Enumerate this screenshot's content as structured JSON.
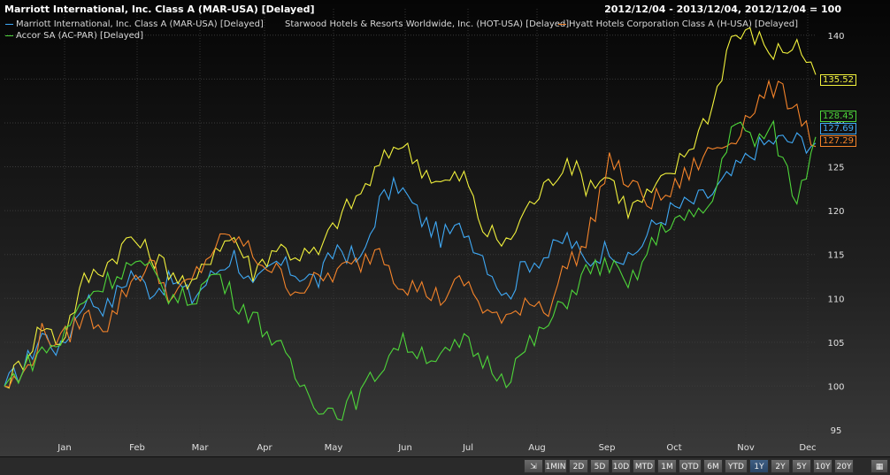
{
  "header": {
    "title": "Marriott International, Inc. Class A (MAR-USA) [Delayed]",
    "range": "2012/12/04 - 2013/12/04, 2012/12/04 = 100"
  },
  "chart_data": {
    "type": "line",
    "ylim": [
      94,
      143
    ],
    "yticks": [
      95,
      100,
      105,
      110,
      115,
      120,
      125,
      130,
      135,
      140
    ],
    "x_axis_labels": [
      "Jan",
      "Feb",
      "Mar",
      "Apr",
      "May",
      "Jun",
      "Jul",
      "Aug",
      "Sep",
      "Oct",
      "Nov",
      "Dec"
    ],
    "grid": true,
    "legend_position": "top-left",
    "series": [
      {
        "name": "Marriott International, Inc. Class A (MAR-USA) [Delayed]",
        "color": "#3fa9f5",
        "last_label": "127.69",
        "anchors": [
          [
            0,
            100
          ],
          [
            4,
            102
          ],
          [
            8,
            106
          ],
          [
            12,
            104
          ],
          [
            17,
            110
          ],
          [
            22,
            109
          ],
          [
            27,
            113
          ],
          [
            31,
            111
          ],
          [
            36,
            112
          ],
          [
            40,
            110
          ],
          [
            45,
            113
          ],
          [
            49,
            115
          ],
          [
            53,
            111
          ],
          [
            58,
            114
          ],
          [
            62,
            113
          ],
          [
            67,
            112
          ],
          [
            71,
            116
          ],
          [
            76,
            114
          ],
          [
            80,
            121
          ],
          [
            84,
            123
          ],
          [
            89,
            119
          ],
          [
            93,
            117
          ],
          [
            98,
            118
          ],
          [
            102,
            115
          ],
          [
            107,
            110
          ],
          [
            111,
            114
          ],
          [
            116,
            115
          ],
          [
            120,
            117
          ],
          [
            124,
            114
          ],
          [
            129,
            116
          ],
          [
            133,
            114
          ],
          [
            138,
            118
          ],
          [
            142,
            120
          ],
          [
            147,
            121
          ],
          [
            151,
            122
          ],
          [
            155,
            124
          ],
          [
            160,
            127
          ],
          [
            164,
            128
          ],
          [
            169,
            128
          ],
          [
            173,
            127.7
          ]
        ]
      },
      {
        "name": "Starwood Hotels & Resorts Worldwide, Inc. (HOT-USA) [Delayed]",
        "color": "#f2f23c",
        "last_label": "135.52",
        "anchors": [
          [
            0,
            100
          ],
          [
            4,
            103
          ],
          [
            8,
            107
          ],
          [
            12,
            105
          ],
          [
            17,
            112
          ],
          [
            22,
            114
          ],
          [
            27,
            117
          ],
          [
            31,
            115
          ],
          [
            36,
            113
          ],
          [
            40,
            111
          ],
          [
            45,
            116
          ],
          [
            49,
            117
          ],
          [
            53,
            113
          ],
          [
            58,
            116
          ],
          [
            62,
            115
          ],
          [
            67,
            115
          ],
          [
            71,
            119
          ],
          [
            76,
            122
          ],
          [
            80,
            125
          ],
          [
            84,
            128
          ],
          [
            89,
            125
          ],
          [
            93,
            123
          ],
          [
            98,
            124
          ],
          [
            102,
            118
          ],
          [
            107,
            116
          ],
          [
            111,
            120
          ],
          [
            116,
            123
          ],
          [
            120,
            126
          ],
          [
            124,
            123
          ],
          [
            129,
            124
          ],
          [
            133,
            120
          ],
          [
            138,
            122
          ],
          [
            142,
            124
          ],
          [
            147,
            128
          ],
          [
            151,
            132
          ],
          [
            155,
            140
          ],
          [
            160,
            140
          ],
          [
            164,
            138
          ],
          [
            169,
            139
          ],
          [
            173,
            135.5
          ]
        ]
      },
      {
        "name": "Hyatt Hotels Corporation Class A (H-USA) [Delayed]",
        "color": "#f5842a",
        "last_label": "127.29",
        "anchors": [
          [
            0,
            100
          ],
          [
            4,
            101
          ],
          [
            8,
            106
          ],
          [
            12,
            105
          ],
          [
            17,
            108
          ],
          [
            22,
            107
          ],
          [
            27,
            112
          ],
          [
            31,
            114
          ],
          [
            36,
            110
          ],
          [
            40,
            112
          ],
          [
            45,
            116
          ],
          [
            49,
            117
          ],
          [
            53,
            115
          ],
          [
            58,
            113
          ],
          [
            62,
            111
          ],
          [
            67,
            112
          ],
          [
            71,
            113
          ],
          [
            76,
            114
          ],
          [
            80,
            116
          ],
          [
            84,
            112
          ],
          [
            89,
            111
          ],
          [
            93,
            110
          ],
          [
            98,
            112
          ],
          [
            102,
            109
          ],
          [
            107,
            107
          ],
          [
            111,
            110
          ],
          [
            116,
            109
          ],
          [
            120,
            114
          ],
          [
            124,
            116
          ],
          [
            129,
            126
          ],
          [
            133,
            123
          ],
          [
            138,
            121
          ],
          [
            142,
            122
          ],
          [
            147,
            125
          ],
          [
            151,
            127
          ],
          [
            155,
            128
          ],
          [
            160,
            132
          ],
          [
            164,
            134
          ],
          [
            169,
            132
          ],
          [
            173,
            127.3
          ]
        ]
      },
      {
        "name": "Accor SA (AC-PAR) [Delayed]",
        "color": "#4ed63a",
        "last_label": "128.45",
        "anchors": [
          [
            0,
            100
          ],
          [
            4,
            102
          ],
          [
            8,
            104
          ],
          [
            12,
            105
          ],
          [
            17,
            110
          ],
          [
            22,
            112
          ],
          [
            27,
            114
          ],
          [
            31,
            113
          ],
          [
            36,
            110
          ],
          [
            40,
            110
          ],
          [
            45,
            113
          ],
          [
            49,
            110
          ],
          [
            53,
            108
          ],
          [
            58,
            105
          ],
          [
            62,
            101
          ],
          [
            67,
            98
          ],
          [
            71,
            97
          ],
          [
            76,
            99
          ],
          [
            80,
            102
          ],
          [
            84,
            105
          ],
          [
            89,
            104
          ],
          [
            93,
            103
          ],
          [
            98,
            105
          ],
          [
            102,
            103
          ],
          [
            107,
            101
          ],
          [
            111,
            104
          ],
          [
            116,
            107
          ],
          [
            120,
            110
          ],
          [
            124,
            113
          ],
          [
            129,
            114
          ],
          [
            133,
            111
          ],
          [
            138,
            116
          ],
          [
            142,
            119
          ],
          [
            147,
            119
          ],
          [
            151,
            121
          ],
          [
            155,
            130
          ],
          [
            160,
            128
          ],
          [
            164,
            129
          ],
          [
            169,
            121
          ],
          [
            173,
            128.4
          ]
        ]
      }
    ]
  },
  "toolbar": {
    "buttons": [
      "1MIN",
      "2D",
      "5D",
      "10D",
      "MTD",
      "1M",
      "QTD",
      "6M",
      "YTD",
      "1Y",
      "2Y",
      "5Y",
      "10Y",
      "20Y"
    ],
    "active": "1Y"
  }
}
